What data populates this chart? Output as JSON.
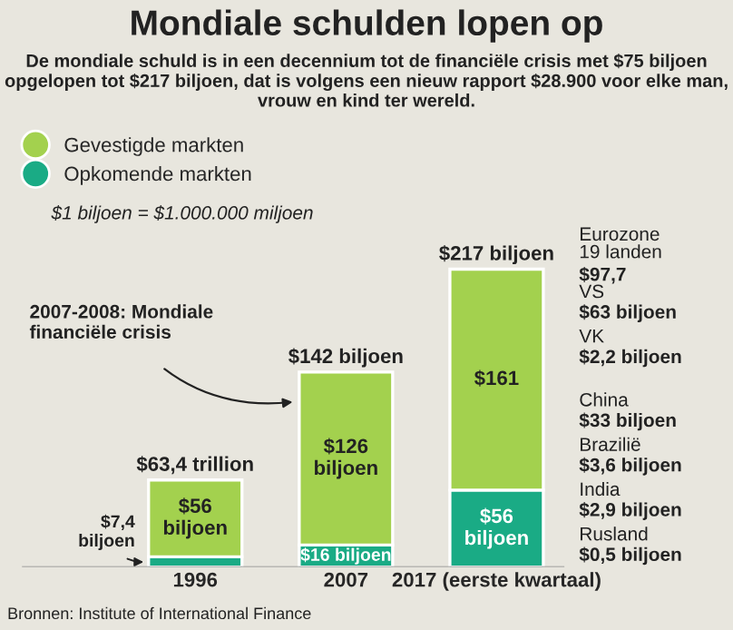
{
  "chart_data": {
    "type": "bar",
    "stacked": true,
    "title": "Mondiale schulden lopen op",
    "subtitle": "De mondiale schuld is in een decennium tot de financiële crisis met $75 biljoen opgelopen tot $217 biljoen, dat is volgens een nieuw rapport $28.900 voor elke man, vrouw en kind ter wereld.",
    "categories": [
      "1996",
      "2007",
      "2017 (eerste kwartaal)"
    ],
    "series": [
      {
        "name": "Opkomende markten",
        "color": "#1aab85",
        "values": [
          7.4,
          16,
          56
        ],
        "value_labels": [
          "$7,4 biljoen",
          "$16 biljoen",
          "$56 biljoen"
        ]
      },
      {
        "name": "Gevestigde markten",
        "color": "#a3d14e",
        "values": [
          56,
          126,
          161
        ],
        "value_labels": [
          "$56 biljoen",
          "$126 biljoen",
          "$161"
        ]
      }
    ],
    "totals": [
      "$63,4 trillion",
      "$142 biljoen",
      "$217 biljoen"
    ],
    "legend": "top left",
    "grid": false,
    "annotations": [
      "$1 biljoen = $1.000.000 miljoen",
      "2007-2008: Mondiale financiële crisis",
      "Eurozone 19 landen $97,7",
      "VS $63 biljoen",
      "VK $2,2 biljoen",
      "China $33 biljoen",
      "Brazilië $3,6 biljoen",
      "India $2,9 biljoen",
      "Rusland $0,5 biljoen",
      "Bronnen: Institute of International Finance"
    ]
  }
}
